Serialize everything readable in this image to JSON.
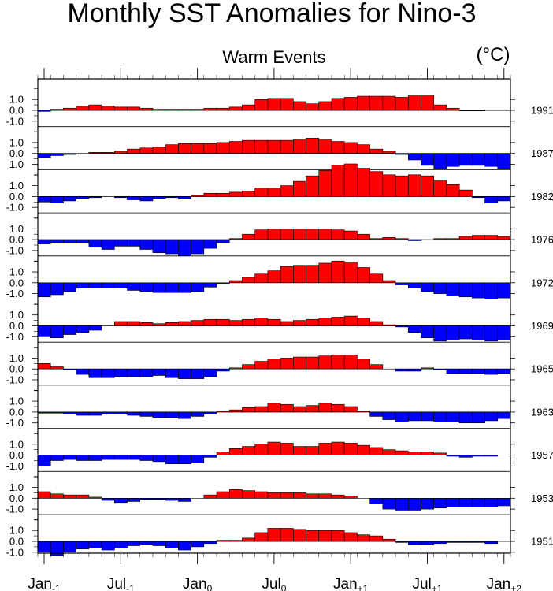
{
  "chart_data": {
    "type": "bar",
    "title": "Monthly SST Anomalies for Nino-3",
    "subtitle": "Warm Events",
    "unit_label": "(°C)",
    "ytick_labels": [
      "1.0",
      "0.0",
      "-1.0"
    ],
    "ylim_per_panel": [
      -1.3,
      1.3
    ],
    "positive_color": "#ff0000",
    "negative_color": "#0000ff",
    "x_months": 37,
    "x_ticks": [
      {
        "month": 0,
        "base": "Jan",
        "sub": "-1"
      },
      {
        "month": 6,
        "base": "Jul",
        "sub": "-1"
      },
      {
        "month": 12,
        "base": "Jan",
        "sub": "0"
      },
      {
        "month": 18,
        "base": "Jul",
        "sub": "0"
      },
      {
        "month": 24,
        "base": "Jan",
        "sub": "+1"
      },
      {
        "month": 30,
        "base": "Jul",
        "sub": "+1"
      },
      {
        "month": 36,
        "base": "Jan",
        "sub": "+2"
      }
    ],
    "series": [
      {
        "name": "1991",
        "values": [
          -0.1,
          0.1,
          0.2,
          0.4,
          0.5,
          0.4,
          0.3,
          0.3,
          0.2,
          0.1,
          0.1,
          0.1,
          0.1,
          0.2,
          0.2,
          0.3,
          0.5,
          1.0,
          1.1,
          1.1,
          0.8,
          0.6,
          0.8,
          1.1,
          1.2,
          1.3,
          1.3,
          1.3,
          1.2,
          1.4,
          1.4,
          0.5,
          0.2,
          -0.05,
          -0.05,
          0.05,
          0.05
        ]
      },
      {
        "name": "1987",
        "values": [
          -0.4,
          -0.2,
          -0.1,
          0.0,
          0.1,
          0.1,
          0.2,
          0.4,
          0.5,
          0.6,
          0.8,
          0.9,
          0.9,
          0.9,
          1.0,
          1.1,
          1.2,
          1.2,
          1.2,
          1.2,
          1.3,
          1.4,
          1.3,
          1.1,
          1.0,
          0.8,
          0.4,
          0.2,
          -0.1,
          -0.6,
          -1.1,
          -1.4,
          -1.2,
          -1.1,
          -1.1,
          -1.2,
          -1.4
        ]
      },
      {
        "name": "1982",
        "values": [
          -0.5,
          -0.6,
          -0.4,
          -0.2,
          -0.1,
          0.0,
          -0.1,
          -0.3,
          -0.4,
          -0.2,
          -0.1,
          -0.2,
          0.1,
          0.3,
          0.3,
          0.4,
          0.5,
          0.8,
          0.8,
          1.0,
          1.4,
          1.9,
          2.4,
          2.9,
          3.0,
          2.6,
          2.3,
          2.0,
          1.9,
          2.0,
          1.9,
          1.5,
          1.1,
          0.6,
          -0.1,
          -0.6,
          -0.4
        ]
      },
      {
        "name": "1976",
        "values": [
          -0.4,
          -0.3,
          -0.3,
          -0.3,
          -0.7,
          -0.9,
          -0.6,
          -0.6,
          -0.9,
          -1.2,
          -1.3,
          -1.5,
          -1.3,
          -0.8,
          -0.3,
          0.1,
          0.5,
          0.9,
          1.0,
          1.0,
          1.0,
          1.0,
          1.0,
          0.9,
          0.8,
          0.5,
          0.1,
          0.2,
          0.1,
          -0.1,
          0.0,
          0.1,
          0.1,
          0.3,
          0.4,
          0.4,
          0.3
        ]
      },
      {
        "name": "1972",
        "values": [
          -1.3,
          -1.1,
          -0.8,
          -0.5,
          -0.5,
          -0.5,
          -0.5,
          -0.7,
          -0.8,
          -0.9,
          -0.9,
          -0.9,
          -0.8,
          -0.4,
          -0.1,
          0.2,
          0.5,
          0.8,
          1.1,
          1.5,
          1.6,
          1.6,
          1.8,
          2.0,
          1.9,
          1.4,
          0.8,
          0.2,
          -0.2,
          -0.5,
          -0.8,
          -1.0,
          -1.2,
          -1.3,
          -1.4,
          -1.5,
          -1.4
        ]
      },
      {
        "name": "1969",
        "values": [
          -1.0,
          -1.1,
          -0.8,
          -0.6,
          -0.4,
          0.0,
          0.4,
          0.4,
          0.3,
          0.2,
          0.3,
          0.4,
          0.5,
          0.6,
          0.6,
          0.5,
          0.6,
          0.7,
          0.6,
          0.4,
          0.5,
          0.6,
          0.7,
          0.8,
          0.9,
          0.7,
          0.4,
          0.1,
          -0.1,
          -0.6,
          -1.1,
          -1.4,
          -1.3,
          -1.2,
          -1.3,
          -1.4,
          -1.3
        ]
      },
      {
        "name": "1965",
        "values": [
          0.5,
          0.2,
          -0.1,
          -0.5,
          -0.8,
          -0.8,
          -0.7,
          -0.7,
          -0.7,
          -0.6,
          -0.8,
          -0.9,
          -0.9,
          -0.7,
          -0.2,
          0.1,
          0.4,
          0.7,
          0.9,
          1.0,
          1.1,
          1.1,
          1.2,
          1.3,
          1.3,
          0.9,
          0.4,
          0.0,
          -0.2,
          -0.2,
          0.1,
          -0.1,
          -0.4,
          -0.4,
          -0.4,
          -0.5,
          -0.4
        ]
      },
      {
        "name": "1963",
        "values": [
          -0.1,
          -0.1,
          -0.2,
          -0.3,
          -0.3,
          -0.2,
          -0.2,
          -0.3,
          -0.4,
          -0.5,
          -0.5,
          -0.6,
          -0.4,
          -0.2,
          0.1,
          0.2,
          0.4,
          0.5,
          0.8,
          0.7,
          0.5,
          0.6,
          0.8,
          0.7,
          0.5,
          0.1,
          -0.4,
          -0.7,
          -0.9,
          -0.8,
          -0.8,
          -0.9,
          -0.9,
          -1.0,
          -1.0,
          -0.8,
          -0.6
        ]
      },
      {
        "name": "1957",
        "values": [
          -1.0,
          -0.5,
          -0.4,
          -0.5,
          -0.5,
          -0.4,
          -0.4,
          -0.4,
          -0.5,
          -0.6,
          -0.8,
          -0.8,
          -0.7,
          -0.2,
          0.3,
          0.6,
          0.8,
          1.0,
          1.2,
          1.1,
          0.8,
          0.8,
          1.1,
          1.2,
          1.1,
          0.9,
          0.7,
          0.5,
          0.4,
          0.3,
          0.3,
          0.2,
          -0.1,
          -0.2,
          -0.1,
          -0.1,
          0.0
        ]
      },
      {
        "name": "1953",
        "values": [
          0.6,
          0.4,
          0.3,
          0.3,
          0.1,
          -0.2,
          -0.4,
          -0.3,
          -0.1,
          -0.1,
          -0.2,
          -0.3,
          0.0,
          0.3,
          0.6,
          0.8,
          0.7,
          0.6,
          0.5,
          0.5,
          0.5,
          0.4,
          0.4,
          0.3,
          0.2,
          0.0,
          -0.5,
          -1.0,
          -1.1,
          -1.1,
          -1.0,
          -0.9,
          -0.8,
          -0.8,
          -0.8,
          -0.8,
          -0.7
        ]
      },
      {
        "name": "1951",
        "values": [
          -1.0,
          -1.3,
          -1.0,
          -0.7,
          -0.6,
          -0.8,
          -0.6,
          -0.4,
          -0.3,
          -0.4,
          -0.6,
          -0.8,
          -0.5,
          -0.2,
          0.1,
          0.1,
          0.3,
          0.8,
          1.2,
          1.2,
          1.1,
          1.0,
          1.0,
          1.0,
          0.8,
          0.6,
          0.5,
          0.2,
          -0.1,
          -0.3,
          -0.3,
          -0.2,
          -0.1,
          -0.1,
          -0.1,
          -0.2,
          0.0
        ]
      }
    ]
  }
}
